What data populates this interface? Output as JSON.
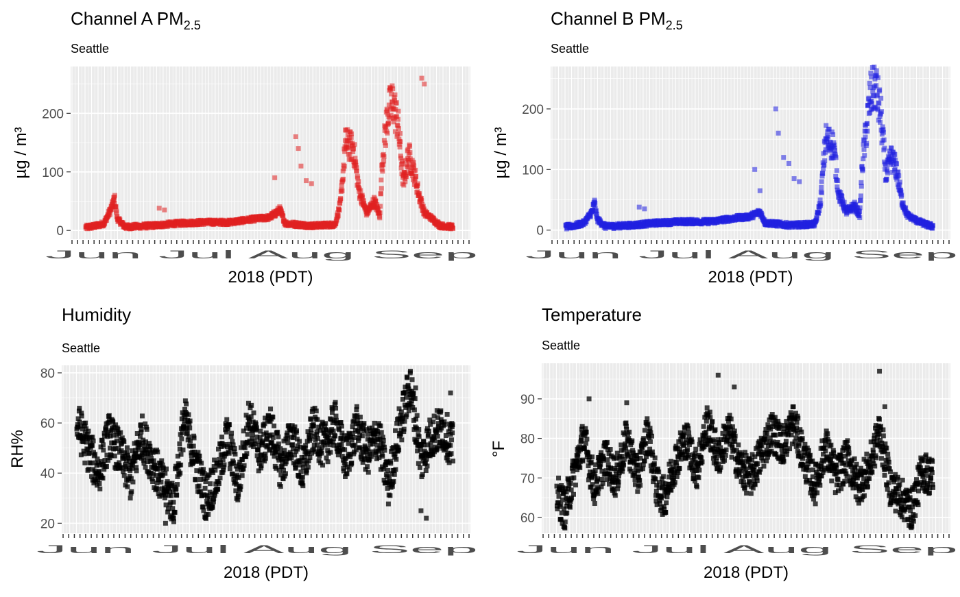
{
  "subtitle": "Seattle",
  "xlabel": "2018 (PDT)",
  "date_axis_text": "Jun Jul Aug Sep",
  "chart_data": [
    {
      "id": "chA",
      "type": "scatter",
      "title": "Channel A PM",
      "title_sub": "2.5",
      "subtitle": "Seattle",
      "xlabel": "2018 (PDT)",
      "ylabel": "µg / m³",
      "ylim": [
        -15,
        280
      ],
      "yticks": [
        0,
        100,
        200
      ],
      "color": "#e02020",
      "grid": true,
      "x_range": [
        "2018-06-01",
        "2018-09-30"
      ],
      "keyframes": [
        [
          0,
          5
        ],
        [
          4,
          8
        ],
        [
          7,
          12
        ],
        [
          10,
          40
        ],
        [
          11,
          55
        ],
        [
          12,
          20
        ],
        [
          15,
          6
        ],
        [
          25,
          8
        ],
        [
          35,
          12
        ],
        [
          45,
          14
        ],
        [
          55,
          14
        ],
        [
          65,
          20
        ],
        [
          70,
          22
        ],
        [
          74,
          35
        ],
        [
          76,
          12
        ],
        [
          86,
          8
        ],
        [
          95,
          10
        ],
        [
          97,
          45
        ],
        [
          99,
          150
        ],
        [
          102,
          140
        ],
        [
          104,
          70
        ],
        [
          107,
          30
        ],
        [
          110,
          50
        ],
        [
          112,
          25
        ],
        [
          113,
          120
        ],
        [
          115,
          200
        ],
        [
          117,
          220
        ],
        [
          119,
          180
        ],
        [
          121,
          80
        ],
        [
          123,
          130
        ],
        [
          125,
          100
        ],
        [
          127,
          60
        ],
        [
          129,
          30
        ],
        [
          132,
          20
        ],
        [
          135,
          8
        ],
        [
          140,
          6
        ]
      ],
      "spikes": [
        [
          28,
          38
        ],
        [
          30,
          35
        ],
        [
          72,
          90
        ],
        [
          80,
          160
        ],
        [
          81,
          140
        ],
        [
          82,
          110
        ],
        [
          84,
          85
        ],
        [
          86,
          80
        ],
        [
          128,
          260
        ],
        [
          129,
          250
        ]
      ]
    },
    {
      "id": "chB",
      "type": "scatter",
      "title": "Channel B PM",
      "title_sub": "2.5",
      "subtitle": "Seattle",
      "xlabel": "2018 (PDT)",
      "ylabel": "µg / m³",
      "ylim": [
        -15,
        270
      ],
      "yticks": [
        0,
        100,
        200
      ],
      "color": "#2020e0",
      "grid": true,
      "x_range": [
        "2018-06-01",
        "2018-09-30"
      ],
      "keyframes": [
        [
          0,
          5
        ],
        [
          4,
          8
        ],
        [
          7,
          12
        ],
        [
          10,
          30
        ],
        [
          11,
          45
        ],
        [
          12,
          18
        ],
        [
          15,
          6
        ],
        [
          25,
          8
        ],
        [
          35,
          12
        ],
        [
          45,
          14
        ],
        [
          55,
          14
        ],
        [
          65,
          20
        ],
        [
          70,
          22
        ],
        [
          74,
          30
        ],
        [
          76,
          12
        ],
        [
          86,
          8
        ],
        [
          95,
          10
        ],
        [
          97,
          45
        ],
        [
          99,
          150
        ],
        [
          102,
          140
        ],
        [
          104,
          60
        ],
        [
          107,
          30
        ],
        [
          110,
          40
        ],
        [
          112,
          25
        ],
        [
          113,
          110
        ],
        [
          116,
          220
        ],
        [
          118,
          240
        ],
        [
          120,
          190
        ],
        [
          122,
          90
        ],
        [
          124,
          120
        ],
        [
          126,
          100
        ],
        [
          128,
          50
        ],
        [
          130,
          25
        ],
        [
          134,
          15
        ],
        [
          138,
          8
        ],
        [
          140,
          6
        ]
      ],
      "spikes": [
        [
          28,
          38
        ],
        [
          30,
          35
        ],
        [
          72,
          100
        ],
        [
          74,
          65
        ],
        [
          80,
          200
        ],
        [
          81,
          160
        ],
        [
          83,
          120
        ],
        [
          85,
          110
        ],
        [
          87,
          85
        ],
        [
          89,
          80
        ]
      ]
    },
    {
      "id": "hum",
      "type": "scatter",
      "title": "Humidity",
      "subtitle": "Seattle",
      "xlabel": "2018 (PDT)",
      "ylabel": "RH%",
      "ylim": [
        16,
        83
      ],
      "yticks": [
        20,
        40,
        60,
        80
      ],
      "color": "#000000",
      "grid": true,
      "x_range": [
        "2018-06-01",
        "2018-09-30"
      ],
      "keyframes": [
        [
          0,
          60
        ],
        [
          4,
          50
        ],
        [
          8,
          40
        ],
        [
          12,
          55
        ],
        [
          16,
          48
        ],
        [
          20,
          38
        ],
        [
          24,
          55
        ],
        [
          28,
          45
        ],
        [
          32,
          35
        ],
        [
          36,
          28
        ],
        [
          40,
          62
        ],
        [
          44,
          45
        ],
        [
          48,
          30
        ],
        [
          52,
          38
        ],
        [
          56,
          55
        ],
        [
          60,
          35
        ],
        [
          64,
          62
        ],
        [
          68,
          48
        ],
        [
          72,
          58
        ],
        [
          76,
          42
        ],
        [
          80,
          55
        ],
        [
          84,
          40
        ],
        [
          88,
          58
        ],
        [
          92,
          50
        ],
        [
          96,
          60
        ],
        [
          100,
          45
        ],
        [
          104,
          58
        ],
        [
          108,
          48
        ],
        [
          112,
          55
        ],
        [
          116,
          35
        ],
        [
          120,
          58
        ],
        [
          124,
          75
        ],
        [
          128,
          45
        ],
        [
          132,
          55
        ],
        [
          136,
          58
        ],
        [
          140,
          50
        ]
      ],
      "spikes": [
        [
          33,
          20
        ],
        [
          36,
          22
        ],
        [
          124,
          80
        ],
        [
          126,
          74
        ],
        [
          128,
          25
        ],
        [
          130,
          22
        ],
        [
          139,
          72
        ]
      ]
    },
    {
      "id": "temp",
      "type": "scatter",
      "title": "Temperature",
      "subtitle": "Seattle",
      "xlabel": "2018 (PDT)",
      "ylabel": "°F",
      "ylim": [
        56,
        99
      ],
      "yticks": [
        60,
        70,
        80,
        90
      ],
      "color": "#000000",
      "grid": true,
      "x_range": [
        "2018-06-01",
        "2018-09-30"
      ],
      "keyframes": [
        [
          0,
          66
        ],
        [
          3,
          62
        ],
        [
          6,
          70
        ],
        [
          10,
          80
        ],
        [
          14,
          68
        ],
        [
          18,
          75
        ],
        [
          22,
          70
        ],
        [
          26,
          80
        ],
        [
          30,
          70
        ],
        [
          34,
          82
        ],
        [
          37,
          68
        ],
        [
          40,
          65
        ],
        [
          44,
          74
        ],
        [
          48,
          80
        ],
        [
          52,
          72
        ],
        [
          56,
          84
        ],
        [
          60,
          75
        ],
        [
          64,
          82
        ],
        [
          68,
          73
        ],
        [
          72,
          70
        ],
        [
          76,
          76
        ],
        [
          80,
          82
        ],
        [
          84,
          78
        ],
        [
          88,
          84
        ],
        [
          92,
          75
        ],
        [
          96,
          68
        ],
        [
          100,
          78
        ],
        [
          104,
          70
        ],
        [
          108,
          75
        ],
        [
          112,
          68
        ],
        [
          116,
          72
        ],
        [
          120,
          82
        ],
        [
          124,
          68
        ],
        [
          128,
          65
        ],
        [
          132,
          62
        ],
        [
          136,
          72
        ],
        [
          140,
          70
        ]
      ],
      "spikes": [
        [
          12,
          90
        ],
        [
          26,
          89
        ],
        [
          60,
          96
        ],
        [
          66,
          93
        ],
        [
          88,
          88
        ],
        [
          120,
          97
        ],
        [
          122,
          88
        ],
        [
          131,
          58
        ]
      ]
    }
  ]
}
